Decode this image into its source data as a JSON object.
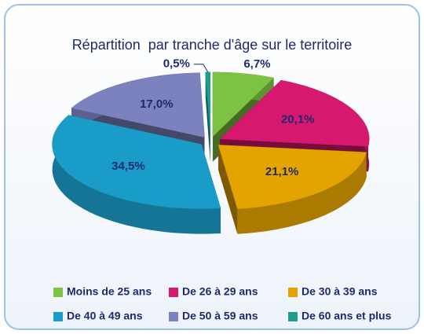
{
  "chart_data": {
    "type": "pie",
    "title": "Répartition  par tranche d'âge sur le territoire",
    "categories": [
      "Moins de 25 ans",
      "De 26 à 29 ans",
      "De 30 à 39 ans",
      "De 40 à 49 ans",
      "De 50 à 59 ans",
      "De 60 ans et plus"
    ],
    "values": [
      6.7,
      20.1,
      21.1,
      34.5,
      17.0,
      0.5
    ],
    "value_labels": [
      "6,7%",
      "20,1%",
      "21,1%",
      "34,5%",
      "17,0%",
      "0,5%"
    ],
    "colors": [
      "#7dc242",
      "#d6186f",
      "#e3a400",
      "#1a9cc8",
      "#7b82be",
      "#1f9e8e"
    ],
    "legend": "bottom"
  }
}
